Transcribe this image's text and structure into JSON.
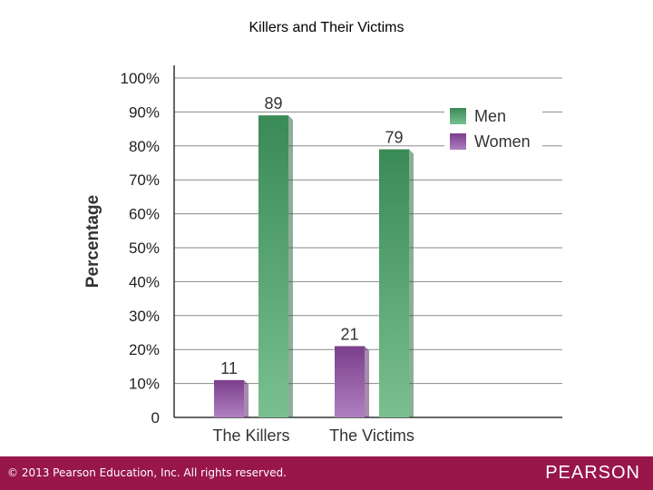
{
  "slide": {
    "title": "Killers and Their Victims"
  },
  "chart_data": {
    "type": "bar",
    "title": "",
    "xlabel": "",
    "ylabel": "Percentage",
    "categories": [
      "The Killers",
      "The Victims"
    ],
    "series": [
      {
        "name": "Women",
        "values": [
          11,
          21
        ],
        "color": "#7b3f8c"
      },
      {
        "name": "Men",
        "values": [
          89,
          79
        ],
        "color": "#3f8f5e"
      }
    ],
    "ylim": [
      0,
      100
    ],
    "yticks": [
      "0",
      "10%",
      "20%",
      "30%",
      "40%",
      "50%",
      "60%",
      "70%",
      "80%",
      "90%",
      "100%"
    ],
    "data_labels": true,
    "legend": {
      "position": "top-right",
      "order": [
        "Men",
        "Women"
      ]
    },
    "grid": true
  },
  "footer": {
    "copyright": "© 2013 Pearson Education, Inc. All rights reserved.",
    "brand": "PEARSON",
    "color": "#98164a"
  }
}
